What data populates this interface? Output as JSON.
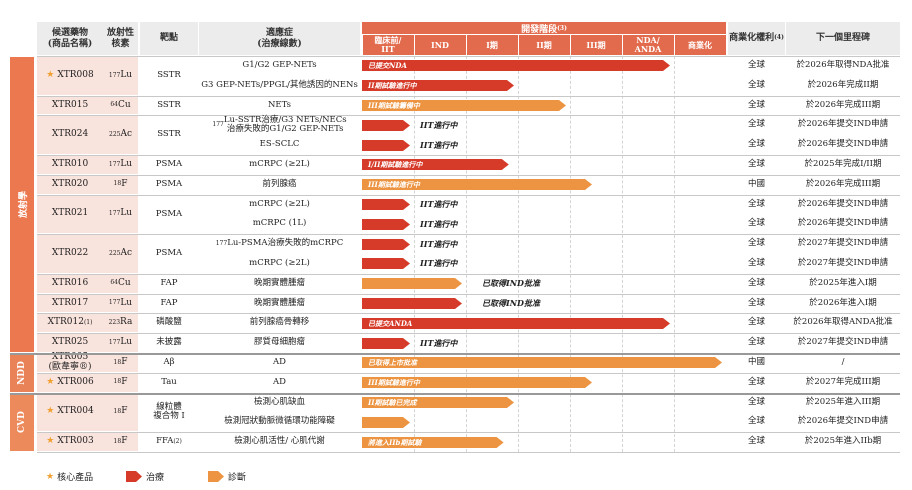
{
  "colors": {
    "therapy": "#d63b2a",
    "diagnosis": "#ec9441",
    "radio_band": "#ec7850",
    "ndd_band": "#e98257",
    "cvd_band": "#ec8a5c",
    "header_orange": "#e36b4d"
  },
  "headers": {
    "candidate": "候選藥物\n(商品名稱)",
    "isotope": "放射性\n核素",
    "target": "靶點",
    "indication": "適應症\n(治療線數)",
    "stage_title": "開發階段",
    "stage_title_sup": "(3)",
    "stages": [
      "臨床前/\nIIT",
      "IND",
      "I期",
      "II期",
      "III期",
      "NDA/\nANDA",
      "商業化"
    ],
    "rights": "商業化權利",
    "rights_sup": "(4)",
    "milestone": "下一個里程碑"
  },
  "categories": [
    {
      "label": "放射學",
      "color_key": "radio_band"
    },
    {
      "label": "NDD",
      "color_key": "ndd_band"
    },
    {
      "label": "CVD",
      "color_key": "cvd_band"
    }
  ],
  "drugs": [
    {
      "name": "XTR008",
      "star": true,
      "isotope_mass": "177",
      "isotope_el": "Lu",
      "target": "SSTR",
      "rows": [
        {
          "ind": "G1/G2 GEP-NETs",
          "type": "therapy",
          "progress": 6,
          "label": "已提交NDA",
          "outside": false,
          "rights": "全球",
          "milestone": "於2026年取得NDA批准"
        },
        {
          "ind": "G3 GEP-NETs/PPGL/其他誘因的NENs",
          "type": "therapy",
          "progress": 3,
          "label": "II期試驗進行中",
          "outside": false,
          "rights": "全球",
          "milestone": "於2026年完成II期"
        }
      ]
    },
    {
      "name": "XTR015",
      "star": false,
      "isotope_mass": "64",
      "isotope_el": "Cu",
      "target": "SSTR",
      "rows": [
        {
          "ind": "NETs",
          "type": "diagnosis",
          "progress": 4,
          "label": "III期試驗籌備中",
          "outside": false,
          "rights": "全球",
          "milestone": "於2026年完成III期"
        }
      ]
    },
    {
      "name": "XTR024",
      "star": false,
      "isotope_mass": "225",
      "isotope_el": "Ac",
      "target": "SSTR",
      "rows": [
        {
          "ind": "177Lu-SSTR治療/G3 NETs/NECs\n治療失敗的G1/G2 GEP-NETs",
          "type": "therapy",
          "progress": 1,
          "label": "IIT進行中",
          "outside": true,
          "rights": "全球",
          "milestone": "於2026年提交IND申請"
        },
        {
          "ind": "ES-SCLC",
          "type": "therapy",
          "progress": 1,
          "label": "IIT進行中",
          "outside": true,
          "rights": "全球",
          "milestone": "於2026年提交IND申請"
        }
      ]
    },
    {
      "name": "XTR010",
      "star": false,
      "isotope_mass": "177",
      "isotope_el": "Lu",
      "target": "PSMA",
      "rows": [
        {
          "ind": "mCRPC (≥2L)",
          "type": "therapy",
          "progress": 2.9,
          "label": "I/II期試驗進行中",
          "outside": false,
          "rights": "全球",
          "milestone": "於2025年完成I/II期"
        }
      ]
    },
    {
      "name": "XTR020",
      "star": false,
      "isotope_mass": "18",
      "isotope_el": "F",
      "target": "PSMA",
      "rows": [
        {
          "ind": "前列腺癌",
          "type": "diagnosis",
          "progress": 4.5,
          "label": "III期試驗進行中",
          "outside": false,
          "rights": "中國",
          "milestone": "於2026年完成III期"
        }
      ]
    },
    {
      "name": "XTR021",
      "star": false,
      "isotope_mass": "177",
      "isotope_el": "Lu",
      "target": "PSMA",
      "rows": [
        {
          "ind": "mCRPC (≥2L)",
          "type": "therapy",
          "progress": 1,
          "label": "IIT進行中",
          "outside": true,
          "rights": "全球",
          "milestone": "於2026年提交IND申請"
        },
        {
          "ind": "mCRPC (1L)",
          "type": "therapy",
          "progress": 1,
          "label": "IIT進行中",
          "outside": true,
          "rights": "全球",
          "milestone": "於2026年提交IND申請"
        }
      ]
    },
    {
      "name": "XTR022",
      "star": false,
      "isotope_mass": "225",
      "isotope_el": "Ac",
      "target": "PSMA",
      "rows": [
        {
          "ind": "177Lu-PSMA治療失敗的mCRPC",
          "type": "therapy",
          "progress": 1,
          "label": "IIT進行中",
          "outside": true,
          "rights": "全球",
          "milestone": "於2027年提交IND申請"
        },
        {
          "ind": "mCRPC (≥2L)",
          "type": "therapy",
          "progress": 1,
          "label": "IIT進行中",
          "outside": true,
          "rights": "全球",
          "milestone": "於2027年提交IND申請"
        }
      ]
    },
    {
      "name": "XTR016",
      "star": false,
      "isotope_mass": "64",
      "isotope_el": "Cu",
      "target": "FAP",
      "rows": [
        {
          "ind": "晚期實體腫瘤",
          "type": "diagnosis",
          "progress": 2,
          "label": "已取得IND批准",
          "outside": true,
          "rights": "全球",
          "milestone": "於2025年進入I期"
        }
      ]
    },
    {
      "name": "XTR017",
      "star": false,
      "isotope_mass": "177",
      "isotope_el": "Lu",
      "target": "FAP",
      "rows": [
        {
          "ind": "晚期實體腫瘤",
          "type": "therapy",
          "progress": 2,
          "label": "已取得IND批准",
          "outside": true,
          "rights": "全球",
          "milestone": "於2026年進入I期"
        }
      ]
    },
    {
      "name": "XTR012",
      "name_sup": "(1)",
      "star": false,
      "isotope_mass": "223",
      "isotope_el": "Ra",
      "target": "磷酸鹽",
      "rows": [
        {
          "ind": "前列腺癌骨轉移",
          "type": "therapy",
          "progress": 6,
          "label": "已提交ANDA",
          "outside": false,
          "rights": "全球",
          "milestone": "於2026年取得ANDA批准"
        }
      ]
    },
    {
      "name": "XTR025",
      "star": false,
      "isotope_mass": "177",
      "isotope_el": "Lu",
      "target": "未披露",
      "rows": [
        {
          "ind": "膠質母細胞瘤",
          "type": "therapy",
          "progress": 1,
          "label": "IIT進行中",
          "outside": true,
          "rights": "全球",
          "milestone": "於2027年提交IND申請"
        }
      ]
    },
    {
      "name": "XTR005\n(歐韋寧®)",
      "star": false,
      "isotope_mass": "18",
      "isotope_el": "F",
      "target": "Aβ",
      "rows": [
        {
          "ind": "AD",
          "type": "diagnosis",
          "progress": 7,
          "label": "已取得上市批准",
          "outside": false,
          "rights": "中國",
          "milestone": "/"
        }
      ]
    },
    {
      "name": "XTR006",
      "star": true,
      "isotope_mass": "18",
      "isotope_el": "F",
      "target": "Tau",
      "rows": [
        {
          "ind": "AD",
          "type": "diagnosis",
          "progress": 4.5,
          "label": "III期試驗進行中",
          "outside": false,
          "rights": "全球",
          "milestone": "於2027年完成III期"
        }
      ]
    },
    {
      "name": "XTR004",
      "star": true,
      "isotope_mass": "18",
      "isotope_el": "F",
      "target": "線粒體\n複合物 I",
      "rows": [
        {
          "ind": "檢測心肌缺血",
          "type": "diagnosis",
          "progress": 3,
          "label": "II期試驗已完成",
          "outside": false,
          "rights": "全球",
          "milestone": "於2025年進入III期"
        },
        {
          "ind": "檢測冠狀動脈微循環功能障礙",
          "type": "diagnosis",
          "progress": 1,
          "label": "",
          "outside": true,
          "rights": "全球",
          "milestone": "於2026年提交IND申請"
        }
      ]
    },
    {
      "name": "XTR003",
      "star": true,
      "isotope_mass": "18",
      "isotope_el": "F",
      "target": "FFA",
      "target_sup": "(2)",
      "rows": [
        {
          "ind": "檢測心肌活性/ 心肌代謝",
          "type": "diagnosis",
          "progress": 2.8,
          "label": "將進入IIb期試驗",
          "outside": false,
          "rights": "全球",
          "milestone": "於2025年進入IIb期"
        }
      ]
    }
  ],
  "legend": {
    "core": "核心產品",
    "therapy": "治療",
    "diagnosis": "診斷"
  }
}
